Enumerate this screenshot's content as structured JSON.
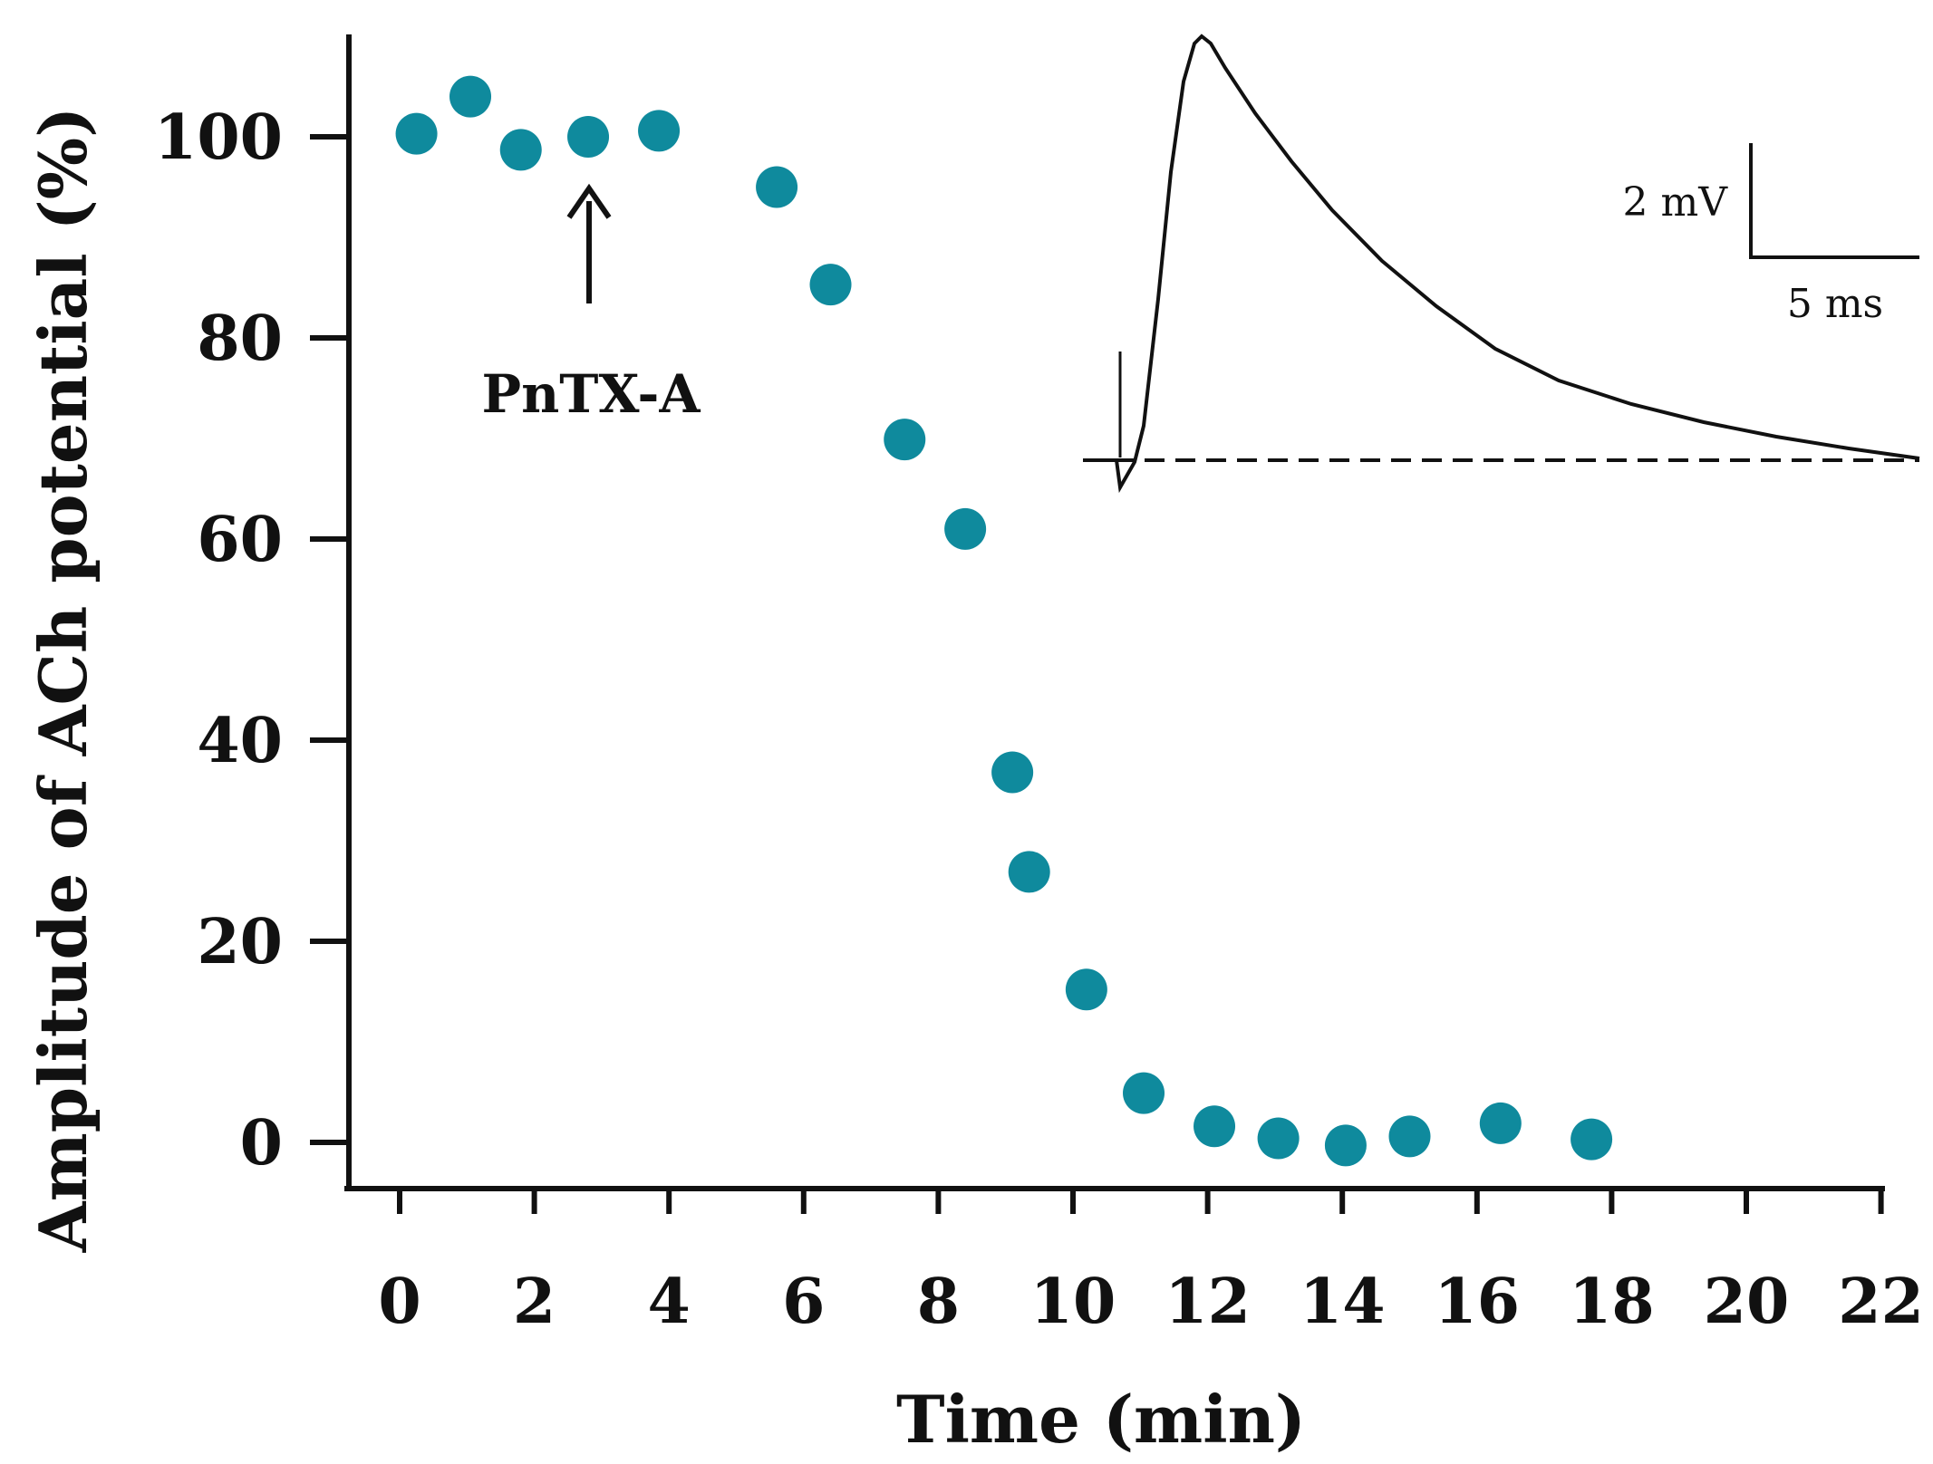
{
  "chart_data": {
    "type": "scatter",
    "title": "",
    "xlabel": "Time (min)",
    "ylabel": "Amplitude of ACh potential (%)",
    "xlim": [
      -0.8,
      22.2
    ],
    "ylim": [
      -4,
      110
    ],
    "x_ticks": [
      "0",
      "2",
      "4",
      "6",
      "8",
      "10",
      "12",
      "14",
      "16",
      "18",
      "20",
      "22"
    ],
    "y_ticks": [
      "0",
      "20",
      "40",
      "60",
      "80",
      "100"
    ],
    "grid": false,
    "legend": "none",
    "marker_color": "#0f8a9d",
    "series": [
      {
        "points": [
          {
            "x": 0.25,
            "y": 100.3
          },
          {
            "x": 1.05,
            "y": 104.0
          },
          {
            "x": 1.8,
            "y": 98.7
          },
          {
            "x": 2.8,
            "y": 100.0
          },
          {
            "x": 3.85,
            "y": 100.6
          },
          {
            "x": 5.6,
            "y": 95.0
          },
          {
            "x": 6.4,
            "y": 85.3
          },
          {
            "x": 7.5,
            "y": 69.9
          },
          {
            "x": 8.4,
            "y": 61.0
          },
          {
            "x": 9.1,
            "y": 36.8
          },
          {
            "x": 9.35,
            "y": 26.9
          },
          {
            "x": 10.2,
            "y": 15.2
          },
          {
            "x": 11.05,
            "y": 4.9
          },
          {
            "x": 12.1,
            "y": 1.6
          },
          {
            "x": 13.05,
            "y": 0.4
          },
          {
            "x": 14.05,
            "y": -0.3
          },
          {
            "x": 15.0,
            "y": 0.6
          },
          {
            "x": 16.35,
            "y": 1.9
          },
          {
            "x": 17.7,
            "y": 0.3
          }
        ]
      }
    ],
    "annotations": [
      {
        "text": "PnTX-A",
        "arrow_at_x": 2.8,
        "arrow_direction": "up"
      }
    ],
    "inset": {
      "description_type": "trace",
      "scale_bar_y": "2 mV",
      "scale_bar_x": "5 ms"
    }
  }
}
